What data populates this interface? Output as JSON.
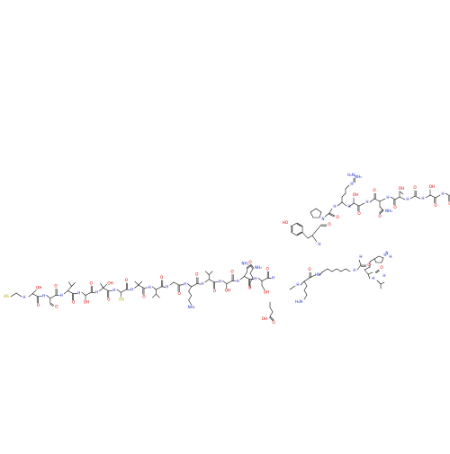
{
  "diagram": {
    "type": "peptide-skeletal-structure",
    "colors": {
      "oxygen": "#e00000",
      "nitrogen": "#2030d0",
      "sulfur": "#b8a000",
      "carbon": "#000000"
    },
    "atom_labels": {
      "hs": "HS",
      "oh": "OH",
      "nh": "H",
      "o": "O",
      "nh2": "NH₂",
      "h2n": "H₂N",
      "n": "N",
      "h": "H",
      "hn": "HN",
      "ho": "HO"
    }
  }
}
